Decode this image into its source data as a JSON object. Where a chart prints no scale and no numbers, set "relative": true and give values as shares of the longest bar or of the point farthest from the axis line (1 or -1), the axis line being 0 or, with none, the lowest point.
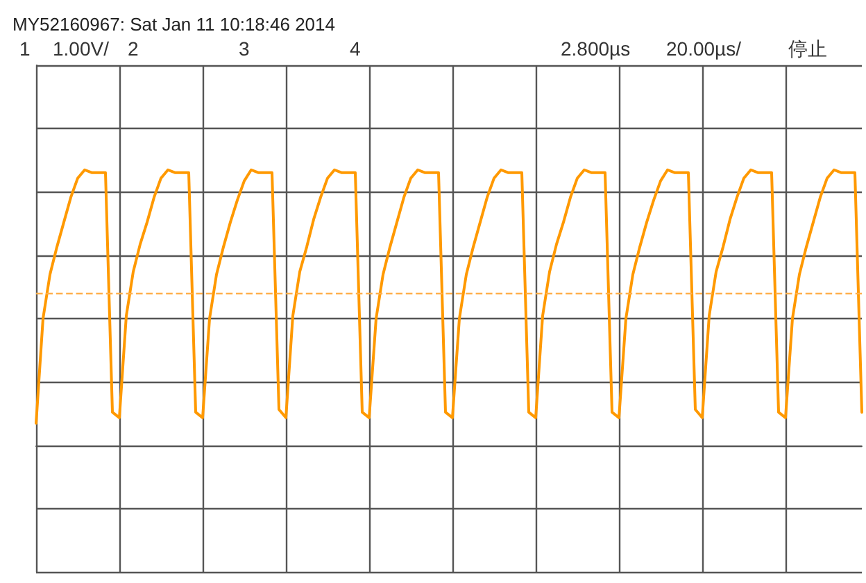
{
  "chart_data": {
    "type": "line",
    "relative": true,
    "title": "MY52160967: Sat Jan 11 10:18:46 2014",
    "annotations": [
      "1",
      "1.00V/",
      "2",
      "3",
      "4",
      "2.800µs",
      "20.00µs/",
      "停止"
    ],
    "categories": [
      null,
      null,
      null,
      null,
      null,
      null,
      null,
      null,
      null,
      null,
      null,
      null,
      null,
      null,
      null,
      null,
      null,
      null,
      null,
      null,
      null,
      null,
      null,
      null,
      null,
      null,
      null,
      null,
      null,
      null,
      null,
      null,
      null,
      null,
      null,
      null,
      null,
      null,
      null,
      null,
      null,
      null,
      null,
      null,
      null,
      null,
      null,
      null,
      null,
      null,
      null,
      null,
      null,
      null,
      null,
      null,
      null,
      null,
      null,
      null,
      null,
      null,
      null,
      null,
      null,
      null,
      null,
      null,
      null,
      null,
      null,
      null,
      null,
      null,
      null,
      null,
      null,
      null,
      null,
      null,
      null,
      null,
      null,
      null,
      null,
      null,
      null,
      null,
      null,
      null,
      null,
      null,
      null,
      null,
      null,
      null,
      null,
      null,
      null,
      null,
      null,
      null,
      null,
      null,
      null,
      null,
      null,
      null,
      null,
      null,
      null,
      null,
      null,
      null,
      null,
      null,
      null,
      null,
      null,
      null
    ],
    "series": [
      {
        "color": "#ff9900",
        "values": [
          0.08,
          0.46,
          0.62,
          0.72,
          0.81,
          0.9,
          0.97,
          1,
          0.99,
          0.99,
          0.99,
          0.12,
          0.1,
          0.47,
          0.63,
          0.73,
          0.81,
          0.9,
          0.97,
          1,
          0.99,
          0.99,
          0.99,
          0.12,
          0.1,
          0.46,
          0.62,
          0.72,
          0.81,
          0.89,
          0.96,
          1,
          0.99,
          0.99,
          0.99,
          0.13,
          0.1,
          0.47,
          0.63,
          0.72,
          0.82,
          0.9,
          0.97,
          1,
          0.99,
          0.99,
          0.99,
          0.12,
          0.1,
          0.46,
          0.62,
          0.72,
          0.81,
          0.9,
          0.97,
          1,
          0.99,
          0.99,
          0.99,
          0.12,
          0.1,
          0.46,
          0.62,
          0.72,
          0.81,
          0.9,
          0.97,
          1,
          0.99,
          0.99,
          0.99,
          0.12,
          0.1,
          0.47,
          0.63,
          0.73,
          0.81,
          0.9,
          0.97,
          1,
          0.99,
          0.99,
          0.99,
          0.12,
          0.1,
          0.46,
          0.62,
          0.72,
          0.81,
          0.89,
          0.96,
          1,
          0.99,
          0.99,
          0.99,
          0.13,
          0.1,
          0.47,
          0.63,
          0.72,
          0.82,
          0.9,
          0.97,
          1,
          0.99,
          0.99,
          0.99,
          0.12,
          0.1,
          0.46,
          0.62,
          0.72,
          0.81,
          0.9,
          0.97,
          1,
          0.99,
          0.99,
          0.99,
          0.12
        ]
      }
    ],
    "ref_lines": [
      {
        "axis": "y",
        "value": 0.55,
        "color": "#ffb04d",
        "line_style": "dashed"
      }
    ],
    "grid": true,
    "line_style": "solid"
  }
}
